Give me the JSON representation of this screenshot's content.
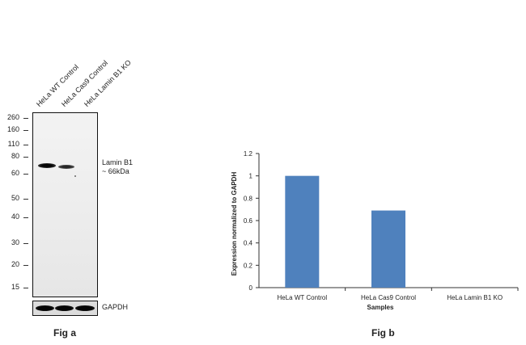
{
  "fig_a": {
    "caption": "Fig a",
    "lanes": [
      "HeLa WT Control",
      "HeLa Cas9 Control",
      "HeLa Lamin B1 KO"
    ],
    "markers": [
      "260",
      "160",
      "110",
      "80",
      "60",
      "50",
      "40",
      "30",
      "20",
      "15"
    ],
    "target_label_line1": "Lamin B1",
    "target_label_line2": "~ 66kDa",
    "loading_control_label": "GAPDH",
    "band_intensity": [
      1.0,
      0.69,
      0.0
    ]
  },
  "fig_b": {
    "caption": "Fig b"
  },
  "chart_data": {
    "type": "bar",
    "categories": [
      "HeLa WT Control",
      "HeLa Cas9 Control",
      "HeLa Lamin B1 KO"
    ],
    "values": [
      1.0,
      0.69,
      0.0
    ],
    "title": "",
    "xlabel": "Samples",
    "ylabel": "Expression  normalized to GAPDH",
    "ylim": [
      0,
      1.2
    ],
    "yticks": [
      "0",
      "0.2",
      "0.4",
      "0.6",
      "0.8",
      "1",
      "1.2"
    ],
    "bar_color": "#4f81bd",
    "grid": false,
    "legend": "none"
  }
}
